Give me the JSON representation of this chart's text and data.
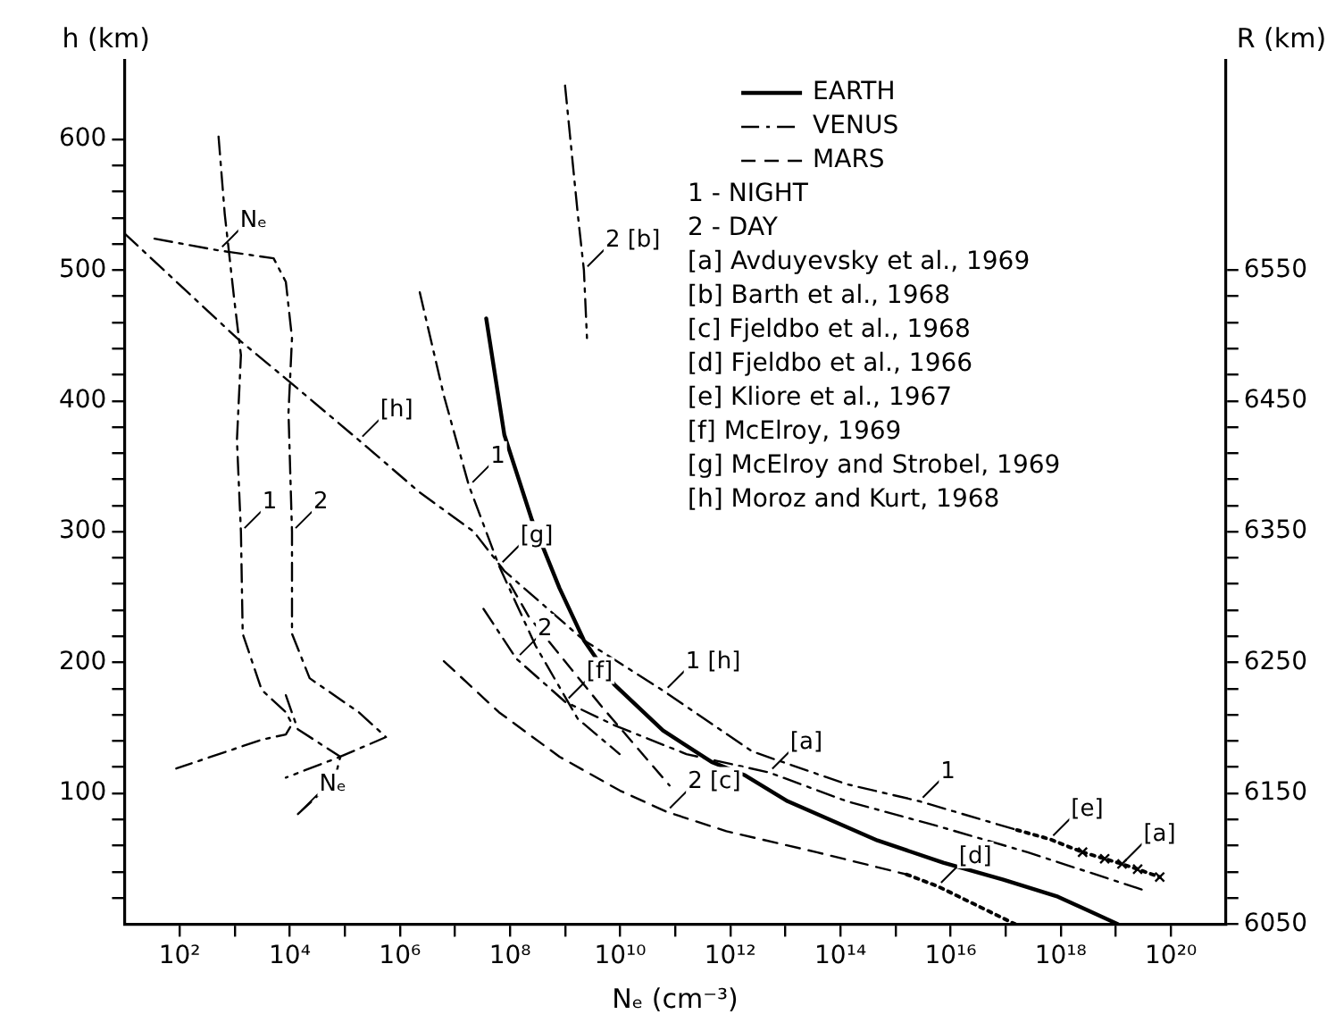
{
  "chart_data": {
    "type": "line",
    "xlabel": "Nₑ (cm⁻³)",
    "ylabel": "h (km)",
    "y2label": "R (km)",
    "log": "x",
    "grid": false,
    "legend": "top right",
    "xlim": [
      10,
      1e+21
    ],
    "xticks": [
      {
        "value": 100.0,
        "label": "10²"
      },
      {
        "value": 1000.0,
        "label": null
      },
      {
        "value": 10000.0,
        "label": "10⁴"
      },
      {
        "value": 100000.0,
        "label": null
      },
      {
        "value": 1000000.0,
        "label": "10⁶"
      },
      {
        "value": 10000000.0,
        "label": null
      },
      {
        "value": 100000000.0,
        "label": "10⁸"
      },
      {
        "value": 1000000000.0,
        "label": null
      },
      {
        "value": 10000000000.0,
        "label": "10¹⁰"
      },
      {
        "value": 100000000000.0,
        "label": null
      },
      {
        "value": 1000000000000.0,
        "label": "10¹²"
      },
      {
        "value": 10000000000000.0,
        "label": null
      },
      {
        "value": 100000000000000.0,
        "label": "10¹⁴"
      },
      {
        "value": 1000000000000000.0,
        "label": null
      },
      {
        "value": 1e+16,
        "label": "10¹⁶"
      },
      {
        "value": 1e+17,
        "label": null
      },
      {
        "value": 1e+18,
        "label": "10¹⁸"
      },
      {
        "value": 1e+19,
        "label": null
      },
      {
        "value": 1e+20,
        "label": "10²⁰"
      }
    ],
    "ylim": [
      0,
      660
    ],
    "yticks": [
      {
        "value": 20,
        "label": null
      },
      {
        "value": 40,
        "label": null
      },
      {
        "value": 60,
        "label": null
      },
      {
        "value": 80,
        "label": null
      },
      100,
      {
        "value": 120,
        "label": null
      },
      {
        "value": 140,
        "label": null
      },
      {
        "value": 160,
        "label": null
      },
      {
        "value": 180,
        "label": null
      },
      200,
      {
        "value": 220,
        "label": null
      },
      {
        "value": 240,
        "label": null
      },
      {
        "value": 260,
        "label": null
      },
      {
        "value": 280,
        "label": null
      },
      300,
      {
        "value": 320,
        "label": null
      },
      {
        "value": 340,
        "label": null
      },
      {
        "value": 360,
        "label": null
      },
      {
        "value": 380,
        "label": null
      },
      400,
      {
        "value": 420,
        "label": null
      },
      {
        "value": 440,
        "label": null
      },
      {
        "value": 460,
        "label": null
      },
      {
        "value": 480,
        "label": null
      },
      500,
      {
        "value": 520,
        "label": null
      },
      {
        "value": 540,
        "label": null
      },
      {
        "value": 560,
        "label": null
      },
      {
        "value": 580,
        "label": null
      },
      600
    ],
    "y2lim": [
      6050,
      6710
    ],
    "y2ticks": [
      6050,
      {
        "value": 6070,
        "label": null
      },
      {
        "value": 6090,
        "label": null
      },
      {
        "value": 6110,
        "label": null
      },
      {
        "value": 6130,
        "label": null
      },
      6150,
      {
        "value": 6170,
        "label": null
      },
      {
        "value": 6190,
        "label": null
      },
      {
        "value": 6210,
        "label": null
      },
      {
        "value": 6230,
        "label": null
      },
      6250,
      {
        "value": 6270,
        "label": null
      },
      {
        "value": 6290,
        "label": null
      },
      {
        "value": 6310,
        "label": null
      },
      {
        "value": 6330,
        "label": null
      },
      6350,
      {
        "value": 6370,
        "label": null
      },
      {
        "value": 6390,
        "label": null
      },
      {
        "value": 6410,
        "label": null
      },
      {
        "value": 6430,
        "label": null
      },
      6450,
      {
        "value": 6470,
        "label": null
      },
      {
        "value": 6490,
        "label": null
      },
      {
        "value": 6510,
        "label": null
      },
      {
        "value": 6530,
        "label": null
      },
      6550
    ],
    "series": [
      {
        "name": "EARTH",
        "color": "#000000",
        "line_style": "solid",
        "x": [
          37000000.0,
          79000000.0,
          250000000.0,
          790000000.0,
          2200000000.0,
          7900000000.0,
          60000000000.0,
          460000000000.0,
          1800000000000.0,
          11000000000000.0,
          470000000000000.0,
          7400000000000000.0,
          9.1e+16,
          8.9e+17,
          1.1e+19
        ],
        "values": [
          463,
          374,
          309,
          257,
          217,
          183,
          148,
          124,
          114,
          94,
          64,
          47,
          34,
          21,
          0
        ]
      },
      {
        "name": "VENUS",
        "color": "#000000",
        "line_style": "dashdot",
        "x": [
          10,
          1100.0,
          8500.0,
          180000.0,
          2300000.0,
          22000000.0,
          79000000.0,
          2200000000.0,
          63000000000.0,
          2500000000000.0,
          130000000000000.0,
          2700000000000000.0,
          1.6e+17
        ],
        "values": [
          528,
          448,
          417,
          370,
          330,
          300,
          270,
          217,
          178,
          132,
          107,
          94,
          72
        ]
      },
      {
        "color": "#000000",
        "line_style": "dotted",
        "x": [
          1.6e+17,
          6.3e+17,
          2.5e+18
        ],
        "values": [
          72,
          65,
          55
        ]
      },
      {
        "color": "#000000",
        "line_style": "dotted",
        "marker": "cross",
        "x": [
          2.5e+18,
          6.3e+18,
          1.3e+19,
          2.5e+19,
          6.3e+19
        ],
        "values": [
          55,
          50,
          46,
          42,
          36
        ]
      },
      {
        "color": "#000000",
        "line_style": "dashdot",
        "x": [
          33000000.0,
          130000000.0,
          1000000000.0,
          7900000000.0,
          160000000000.0,
          5000000000000.0,
          130000000000000.0,
          5800000000000000.0,
          2.5e+17,
          3.8e+19
        ],
        "values": [
          241,
          203,
          170,
          152,
          130,
          116,
          94,
          75,
          55,
          25
        ]
      },
      {
        "color": "#000000",
        "line_style": "dashdot",
        "x": [
          2300000.0,
          6300000.0,
          18000000.0,
          63000000.0,
          290000000.0,
          1700000000.0,
          9800000000.0
        ],
        "values": [
          483,
          404,
          335,
          274,
          213,
          157,
          130
        ]
      },
      {
        "color": "#000000",
        "line_style": "dashdot",
        "x": [
          1000000000.0,
          1700000000.0,
          2200000000.0,
          2500000000.0
        ],
        "values": [
          641,
          543,
          500,
          448
        ]
      },
      {
        "color": "#000000",
        "line_style": "dashdot",
        "x": [
          510,
          660,
          980,
          1300,
          1100,
          1300,
          1400,
          3100,
          8500,
          11000.0,
          8500,
          3100,
          87
        ],
        "values": [
          602,
          543,
          478,
          435,
          370,
          300,
          222,
          179,
          162,
          153,
          145,
          141,
          119
        ]
      },
      {
        "color": "#000000",
        "line_style": "dashdot",
        "x": [
          35,
          510,
          5100,
          8500,
          11000.0,
          9500,
          11000.0,
          11000.0,
          23000.0,
          180000.0,
          560000.0,
          83000.0,
          8500
        ],
        "values": [
          524,
          515,
          509,
          491,
          448,
          391,
          300,
          222,
          188,
          162,
          143,
          128,
          112
        ]
      },
      {
        "color": "#000000",
        "line_style": "dashdot",
        "x": [
          8500,
          14000.0,
          83000.0,
          65000.0,
          14000.0
        ],
        "values": [
          175,
          149,
          128,
          110,
          84
        ]
      },
      {
        "name": "MARS",
        "color": "#000000",
        "line_style": "dashed",
        "x": [
          6300000.0,
          63000000.0,
          790000000.0,
          10000000000.0,
          69000000000.0,
          850000000000.0,
          37000000000000.0,
          1600000000000000.0
        ],
        "values": [
          201,
          162,
          128,
          102,
          86,
          71,
          55,
          38
        ]
      },
      {
        "color": "#000000",
        "line_style": "dotted",
        "x": [
          1600000000000000.0,
          5800000000000000.0,
          1.5e+17
        ],
        "values": [
          38,
          29,
          0
        ]
      },
      {
        "color": "#000000",
        "line_style": "dashed",
        "x": [
          100000000.0,
          220000000.0,
          4700000000.0,
          79000000000.0
        ],
        "values": [
          260,
          235,
          166,
          106
        ]
      }
    ],
    "annotations": [
      "1 - NIGHT",
      "2 - DAY",
      "[a] Avduyevsky et al., 1969",
      "[b] Barth et al., 1968",
      "[c] Fjeldbo et al., 1968",
      "[d] Fjeldbo et al., 1966",
      "[e] Kliore et al., 1967",
      "[f] McElroy, 1969",
      "[g] McElroy and Strobel, 1969",
      "[h] Moroz and Kurt, 1968",
      {
        "text": "Nₑ",
        "x": 510,
        "y": 515
      },
      {
        "text": "Nₑ",
        "x": 14000.0,
        "y": 84
      },
      {
        "text": "1",
        "x": 1300,
        "y": 300
      },
      {
        "text": "2",
        "x": 11000.0,
        "y": 300
      },
      {
        "text": "[h]",
        "x": 180000.0,
        "y": 370
      },
      {
        "text": "[g]",
        "x": 63000000.0,
        "y": 274
      },
      {
        "text": "1",
        "x": 18000000.0,
        "y": 335
      },
      {
        "text": "2 [b]",
        "x": 2200000000.0,
        "y": 500
      },
      {
        "text": "2",
        "x": 130000000.0,
        "y": 203
      },
      {
        "text": "[f]",
        "x": 1000000000.0,
        "y": 170
      },
      {
        "text": "1 [h]",
        "x": 63000000000.0,
        "y": 178
      },
      {
        "text": "[a]",
        "x": 5000000000000.0,
        "y": 116
      },
      {
        "text": "1",
        "x": 2700000000000000.0,
        "y": 94
      },
      {
        "text": "[e]",
        "x": 6.3e+17,
        "y": 65
      },
      {
        "text": "[a]",
        "x": 1.3e+19,
        "y": 46
      },
      {
        "text": "[d]",
        "x": 5800000000000000.0,
        "y": 29
      },
      {
        "text": "2 [c]",
        "x": 69000000000.0,
        "y": 86
      }
    ]
  }
}
